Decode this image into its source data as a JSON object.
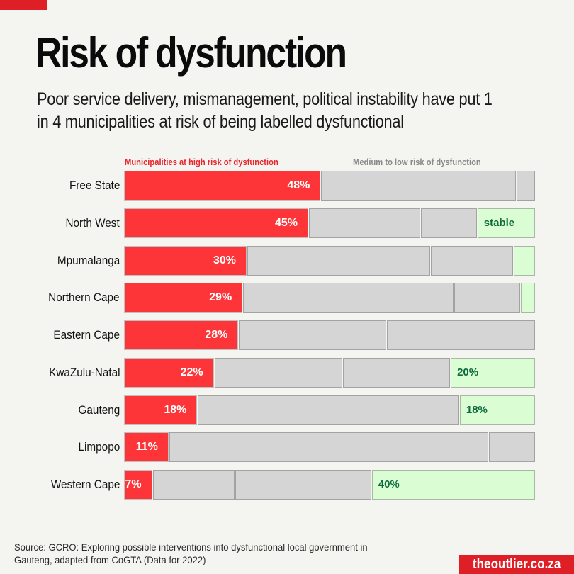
{
  "header": {
    "title": "Risk of dysfunction",
    "subtitle": "Poor service delivery, mismanagement, political instability have put 1 in 4 municipalities at risk of being labelled dysfunctional"
  },
  "colors": {
    "high_risk": "#fe3538",
    "medium_low_risk": "#d5d5d5",
    "stable": "#dafdd4",
    "brand": "#de1f26"
  },
  "chart_data": {
    "type": "bar",
    "orientation": "horizontal-stacked-100",
    "title": "Risk of dysfunction",
    "legend": [
      {
        "name": "Municipalities at high risk of dysfunction",
        "color": "#fe3538"
      },
      {
        "name": "Medium to low risk of dysfunction",
        "color": "#d5d5d5"
      }
    ],
    "categories": [
      "Free State",
      "North West",
      "Mpumalanga",
      "Northern Cape",
      "Eastern Cape",
      "KwaZulu-Natal",
      "Gauteng",
      "Limpopo",
      "Western Cape"
    ],
    "rows": [
      {
        "name": "Free State",
        "segments": [
          {
            "type": "high",
            "value": 48,
            "label": "48%"
          },
          {
            "type": "mid",
            "value": 47.6
          },
          {
            "type": "mid",
            "value": 4.4
          }
        ]
      },
      {
        "name": "North West",
        "segments": [
          {
            "type": "high",
            "value": 45,
            "label": "45%"
          },
          {
            "type": "mid",
            "value": 27.2
          },
          {
            "type": "mid",
            "value": 13.8
          },
          {
            "type": "stable",
            "value": 14,
            "label": "stable"
          }
        ]
      },
      {
        "name": "Mpumalanga",
        "segments": [
          {
            "type": "high",
            "value": 30,
            "label": "30%"
          },
          {
            "type": "mid",
            "value": 44.6
          },
          {
            "type": "mid",
            "value": 20.3
          },
          {
            "type": "stable",
            "value": 5.1
          }
        ]
      },
      {
        "name": "Northern Cape",
        "segments": [
          {
            "type": "high",
            "value": 29,
            "label": "29%"
          },
          {
            "type": "mid",
            "value": 51.4
          },
          {
            "type": "mid",
            "value": 16.2
          },
          {
            "type": "stable",
            "value": 3.4
          }
        ]
      },
      {
        "name": "Eastern Cape",
        "segments": [
          {
            "type": "high",
            "value": 28,
            "label": "28%"
          },
          {
            "type": "mid",
            "value": 35.9
          },
          {
            "type": "mid",
            "value": 36.1
          }
        ]
      },
      {
        "name": "KwaZulu-Natal",
        "segments": [
          {
            "type": "high",
            "value": 22,
            "label": "22%"
          },
          {
            "type": "mid",
            "value": 31.3
          },
          {
            "type": "mid",
            "value": 26.2
          },
          {
            "type": "stable",
            "value": 20.5,
            "label": "20%"
          }
        ]
      },
      {
        "name": "Gauteng",
        "segments": [
          {
            "type": "high",
            "value": 18,
            "label": "18%"
          },
          {
            "type": "mid",
            "value": 63.7
          },
          {
            "type": "stable",
            "value": 18.3,
            "label": "18%"
          }
        ]
      },
      {
        "name": "Limpopo",
        "segments": [
          {
            "type": "high",
            "value": 11,
            "label": "11%"
          },
          {
            "type": "mid",
            "value": 77.8
          },
          {
            "type": "mid",
            "value": 11.2
          }
        ]
      },
      {
        "name": "Western Cape",
        "segments": [
          {
            "type": "high",
            "value": 7,
            "label": "7%"
          },
          {
            "type": "mid",
            "value": 20
          },
          {
            "type": "mid",
            "value": 33.3
          },
          {
            "type": "stable",
            "value": 39.7,
            "label": "40%"
          }
        ]
      }
    ],
    "xlim": [
      0,
      100
    ],
    "grid": false
  },
  "footer": {
    "source": "Source: GCRO: Exploring possible interventions into dysfunctional local government in Gauteng, adapted from CoGTA (Data for 2022)",
    "brand": "theoutlier.co.za"
  }
}
